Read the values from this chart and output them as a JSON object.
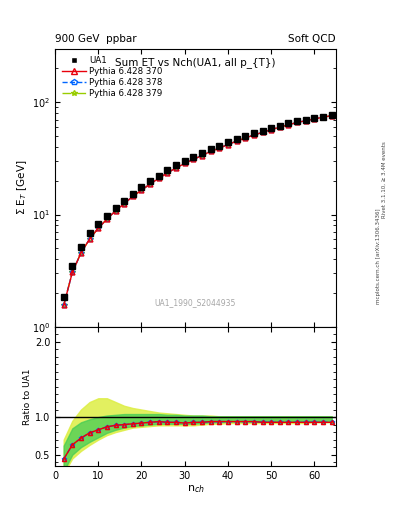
{
  "title": "Sum ET vs Nch(UA1, all p_{T})",
  "header_left": "900 GeV  ppbar",
  "header_right": "Soft QCD",
  "watermark": "UA1_1990_S2044935",
  "right_label_top": "Rivet 3.1.10, ≥ 3.4M events",
  "right_label_bot": "mcplots.cern.ch [arXiv:1306.3436]",
  "xlabel": "n$_{ch}$",
  "ylabel_main": "Σ E$_{T}$ [GeV]",
  "ylabel_ratio": "Ratio to UA1",
  "xlim": [
    0,
    65
  ],
  "ylim_main": [
    1.0,
    300
  ],
  "ylim_ratio": [
    0.35,
    2.2
  ],
  "ua1_nch": [
    2,
    4,
    6,
    8,
    10,
    12,
    14,
    16,
    18,
    20,
    22,
    24,
    26,
    28,
    30,
    32,
    34,
    36,
    38,
    40,
    42,
    44,
    46,
    48,
    50,
    52,
    54,
    56,
    58,
    60,
    62,
    64
  ],
  "ua1_sumEt": [
    1.85,
    3.5,
    5.1,
    6.8,
    8.3,
    9.8,
    11.4,
    13.1,
    15.2,
    17.5,
    19.8,
    22.2,
    24.8,
    27.5,
    30.2,
    32.8,
    35.5,
    38.2,
    41.0,
    44.0,
    47.0,
    50.0,
    53.0,
    56.0,
    59.0,
    62.0,
    65.0,
    67.5,
    70.0,
    72.5,
    74.5,
    76.5
  ],
  "py370_nch": [
    2,
    4,
    6,
    8,
    10,
    12,
    14,
    16,
    18,
    20,
    22,
    24,
    26,
    28,
    30,
    32,
    34,
    36,
    38,
    40,
    42,
    44,
    46,
    48,
    50,
    52,
    54,
    56,
    58,
    60,
    62,
    64
  ],
  "py370_sumEt": [
    1.55,
    3.05,
    4.55,
    6.05,
    7.55,
    9.1,
    10.8,
    12.5,
    14.5,
    16.5,
    18.7,
    21.0,
    23.5,
    26.0,
    28.5,
    31.0,
    33.5,
    36.5,
    39.0,
    42.0,
    45.0,
    48.0,
    51.0,
    54.0,
    57.0,
    60.0,
    63.0,
    66.0,
    68.5,
    71.0,
    73.5,
    76.0
  ],
  "py378_nch": [
    2,
    4,
    6,
    8,
    10,
    12,
    14,
    16,
    18,
    20,
    22,
    24,
    26,
    28,
    30,
    32,
    34,
    36,
    38,
    40,
    42,
    44,
    46,
    48,
    50,
    52,
    54,
    56,
    58,
    60,
    62,
    64
  ],
  "py378_sumEt": [
    1.55,
    3.05,
    4.55,
    6.05,
    7.55,
    9.1,
    10.8,
    12.5,
    14.5,
    16.5,
    18.7,
    21.0,
    23.5,
    26.0,
    28.5,
    31.0,
    33.5,
    36.5,
    39.0,
    42.0,
    45.0,
    48.0,
    51.0,
    54.0,
    57.0,
    60.0,
    63.0,
    66.0,
    68.5,
    71.0,
    73.5,
    76.0
  ],
  "py379_nch": [
    2,
    4,
    6,
    8,
    10,
    12,
    14,
    16,
    18,
    20,
    22,
    24,
    26,
    28,
    30,
    32,
    34,
    36,
    38,
    40,
    42,
    44,
    46,
    48,
    50,
    52,
    54,
    56,
    58,
    60,
    62,
    64
  ],
  "py379_sumEt": [
    1.55,
    3.05,
    4.55,
    6.05,
    7.55,
    9.1,
    10.8,
    12.5,
    14.5,
    16.5,
    18.7,
    21.0,
    23.5,
    26.0,
    28.5,
    31.0,
    33.5,
    36.5,
    39.0,
    42.0,
    45.0,
    48.0,
    51.0,
    54.0,
    57.0,
    60.0,
    63.0,
    66.0,
    68.5,
    71.0,
    73.5,
    76.0
  ],
  "color_py370": "#e8000b",
  "color_py378": "#0066ff",
  "color_py379": "#99cc00",
  "color_ua1": "#000000",
  "ratio_py370": [
    0.44,
    0.63,
    0.72,
    0.79,
    0.83,
    0.87,
    0.89,
    0.9,
    0.91,
    0.92,
    0.93,
    0.94,
    0.93,
    0.93,
    0.92,
    0.93,
    0.93,
    0.94,
    0.94,
    0.94,
    0.94,
    0.94,
    0.94,
    0.93,
    0.93,
    0.93,
    0.93,
    0.93,
    0.93,
    0.93,
    0.93,
    0.93
  ],
  "ratio_py378": [
    0.44,
    0.63,
    0.72,
    0.79,
    0.83,
    0.87,
    0.89,
    0.9,
    0.91,
    0.92,
    0.93,
    0.94,
    0.93,
    0.93,
    0.92,
    0.93,
    0.93,
    0.94,
    0.94,
    0.94,
    0.94,
    0.94,
    0.94,
    0.93,
    0.93,
    0.93,
    0.93,
    0.93,
    0.93,
    0.93,
    0.93,
    0.93
  ],
  "ratio_py379": [
    0.44,
    0.63,
    0.72,
    0.79,
    0.83,
    0.87,
    0.89,
    0.9,
    0.91,
    0.92,
    0.93,
    0.94,
    0.93,
    0.93,
    0.92,
    0.93,
    0.93,
    0.94,
    0.94,
    0.94,
    0.94,
    0.94,
    0.94,
    0.93,
    0.93,
    0.93,
    0.93,
    0.93,
    0.93,
    0.93,
    0.93,
    0.93
  ],
  "band_lo_yellow": [
    0.25,
    0.45,
    0.55,
    0.63,
    0.7,
    0.76,
    0.8,
    0.83,
    0.86,
    0.87,
    0.88,
    0.89,
    0.89,
    0.89,
    0.89,
    0.89,
    0.9,
    0.91,
    0.91,
    0.92,
    0.92,
    0.92,
    0.92,
    0.92,
    0.92,
    0.92,
    0.92,
    0.92,
    0.92,
    0.93,
    0.93,
    0.93
  ],
  "band_hi_yellow": [
    0.7,
    0.95,
    1.1,
    1.2,
    1.25,
    1.25,
    1.2,
    1.15,
    1.12,
    1.1,
    1.08,
    1.06,
    1.05,
    1.04,
    1.03,
    1.02,
    1.02,
    1.02,
    1.01,
    1.01,
    1.01,
    1.01,
    1.01,
    1.01,
    1.01,
    1.01,
    1.01,
    1.01,
    1.01,
    1.01,
    1.01,
    1.01
  ],
  "band_lo_green": [
    0.28,
    0.5,
    0.6,
    0.67,
    0.73,
    0.79,
    0.83,
    0.86,
    0.88,
    0.89,
    0.9,
    0.91,
    0.91,
    0.91,
    0.91,
    0.91,
    0.92,
    0.93,
    0.93,
    0.94,
    0.94,
    0.94,
    0.94,
    0.94,
    0.94,
    0.94,
    0.94,
    0.94,
    0.94,
    0.94,
    0.94,
    0.94
  ],
  "band_hi_green": [
    0.62,
    0.85,
    0.93,
    0.97,
    1.0,
    1.02,
    1.03,
    1.04,
    1.04,
    1.04,
    1.04,
    1.04,
    1.03,
    1.03,
    1.02,
    1.02,
    1.02,
    1.01,
    1.01,
    1.01,
    1.01,
    1.01,
    1.01,
    1.01,
    1.01,
    1.01,
    1.01,
    1.01,
    1.01,
    1.01,
    1.01,
    1.01
  ]
}
